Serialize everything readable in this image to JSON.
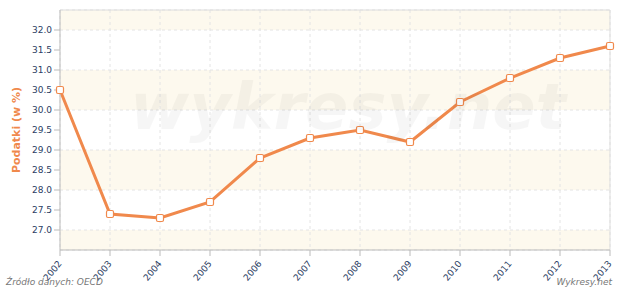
{
  "chart_data": {
    "type": "line",
    "y_label": "Podatki (w %)",
    "source": "Źródło danych: OECD",
    "credit": "Wykresy.net",
    "watermark": "wykresy.net",
    "categories": [
      "2002",
      "2003",
      "2004",
      "2005",
      "2006",
      "2007",
      "2008",
      "2009",
      "2010",
      "2011",
      "2012",
      "2013"
    ],
    "values": [
      30.5,
      27.4,
      27.3,
      27.7,
      28.8,
      29.3,
      29.5,
      29.2,
      30.2,
      30.8,
      31.3,
      31.6
    ],
    "color": "#f0894c",
    "marker": "square",
    "ylim": [
      26.5,
      32.5
    ],
    "yticks": [
      {
        "value": 27,
        "label": "27.0"
      },
      27.5,
      {
        "value": 28,
        "label": "28.0"
      },
      28.5,
      {
        "value": 29,
        "label": "29.0"
      },
      29.5,
      {
        "value": 30,
        "label": "30.0"
      },
      30.5,
      {
        "value": 31,
        "label": "31.0"
      },
      31.5,
      {
        "value": 32,
        "label": "32.0"
      }
    ],
    "grid": true
  }
}
